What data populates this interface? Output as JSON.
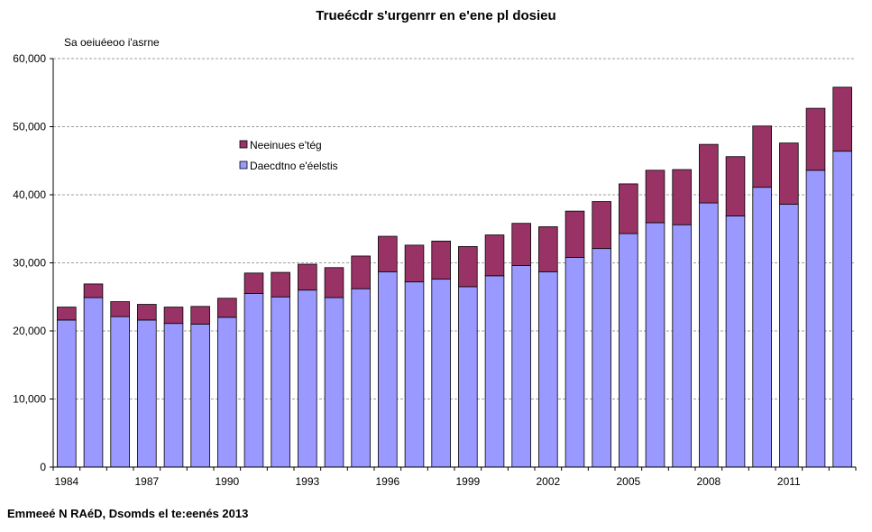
{
  "chart_data": {
    "type": "bar",
    "stacked": true,
    "title": "Trueécdr s'urgenrr en e'ene pl dosieu",
    "ylabel": "Sa oeiuéeoo i'asrne",
    "xlabel": "",
    "ylim": [
      0,
      60000
    ],
    "yticks": [
      0,
      10000,
      20000,
      30000,
      40000,
      50000,
      60000
    ],
    "ytick_labels": [
      "0",
      "10,000",
      "20,000",
      "30,000",
      "40,000",
      "50,000",
      "60,000"
    ],
    "grid": true,
    "legend_position": "upper-left-inside",
    "categories": [
      1984,
      1985,
      1986,
      1987,
      1988,
      1989,
      1990,
      1991,
      1992,
      1993,
      1994,
      1995,
      1996,
      1997,
      1998,
      1999,
      2000,
      2001,
      2002,
      2003,
      2004,
      2005,
      2006,
      2007,
      2008,
      2009,
      2010,
      2011,
      2012,
      2013
    ],
    "xtick_labels": [
      "1984",
      "1987",
      "1990",
      "1993",
      "1996",
      "1999",
      "2002",
      "2005",
      "2008",
      "2011"
    ],
    "series": [
      {
        "name": "Daecdtno e'éelstis",
        "color": "#9999ff",
        "values": [
          21600,
          24900,
          22100,
          21600,
          21100,
          21000,
          22000,
          25500,
          25000,
          26000,
          24900,
          26200,
          28700,
          27200,
          27600,
          26500,
          28100,
          29600,
          28700,
          30800,
          32100,
          34300,
          35900,
          35600,
          38800,
          36900,
          41100,
          38600,
          43600,
          46400
        ]
      },
      {
        "name": "Neeinues e'tég",
        "color": "#993366",
        "values": [
          1900,
          2000,
          2200,
          2300,
          2400,
          2600,
          2800,
          3000,
          3600,
          3800,
          4400,
          4800,
          5200,
          5400,
          5600,
          5900,
          6000,
          6200,
          6600,
          6800,
          6900,
          7300,
          7700,
          8100,
          8600,
          8700,
          9000,
          9000,
          9100,
          9400
        ]
      }
    ]
  },
  "footer": {
    "source": "Emmeeé N RAéD, Dsomds el te:eenés 2013"
  }
}
